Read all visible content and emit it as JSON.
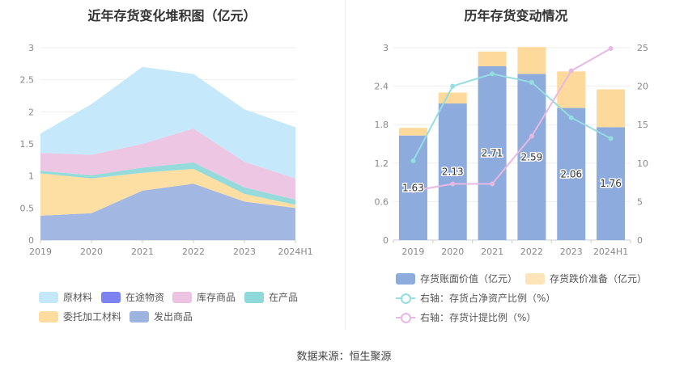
{
  "source_text": "数据来源：恒生聚源",
  "chart_data": [
    {
      "type": "area",
      "title": "近年存货变化堆积图（亿元）",
      "categories": [
        "2019",
        "2020",
        "2021",
        "2022",
        "2023",
        "2024H1"
      ],
      "ylim": [
        0,
        3
      ],
      "yticks": [
        "0",
        "0.5",
        "1",
        "1.5",
        "2",
        "2.5",
        "3"
      ],
      "series": [
        {
          "name": "发出商品",
          "color": "#9db4e0",
          "values": [
            0.38,
            0.42,
            0.77,
            0.88,
            0.6,
            0.5
          ]
        },
        {
          "name": "委托加工材料",
          "color": "#fddc9e",
          "values": [
            0.66,
            0.54,
            0.28,
            0.23,
            0.12,
            0.05
          ]
        },
        {
          "name": "在产品",
          "color": "#8fd9da",
          "values": [
            0.04,
            0.05,
            0.08,
            0.1,
            0.1,
            0.08
          ]
        },
        {
          "name": "在途物资",
          "color": "#7c83f0",
          "values": [
            0.0,
            0.0,
            0.0,
            0.0,
            0.0,
            0.0
          ]
        },
        {
          "name": "库存商品",
          "color": "#ecc3e1",
          "values": [
            0.28,
            0.32,
            0.37,
            0.53,
            0.4,
            0.33
          ]
        },
        {
          "name": "原材料",
          "color": "#c2e8fa",
          "values": [
            0.3,
            0.79,
            1.2,
            0.85,
            0.82,
            0.8
          ]
        }
      ],
      "legend": [
        "原材料",
        "在途物资",
        "库存商品",
        "在产品",
        "委托加工材料",
        "发出商品"
      ]
    },
    {
      "type": "bar",
      "title": "历年存货变动情况",
      "categories": [
        "2019",
        "2020",
        "2021",
        "2022",
        "2023",
        "2024H1"
      ],
      "ylim": [
        0,
        3
      ],
      "yticks": [
        "0",
        "0.6",
        "1.2",
        "1.8",
        "2.4",
        "3"
      ],
      "y2lim": [
        0,
        25
      ],
      "y2ticks": [
        "0",
        "5",
        "10",
        "15",
        "20",
        "25"
      ],
      "series": [
        {
          "name": "存货账面价值（亿元）",
          "type": "bar",
          "color": "#8dabdc",
          "values": [
            1.63,
            2.13,
            2.71,
            2.59,
            2.06,
            1.76
          ],
          "labels": [
            "1.63",
            "2.13",
            "2.71",
            "2.59",
            "2.06",
            "1.76"
          ]
        },
        {
          "name": "存货跌价准备（亿元）",
          "type": "bar",
          "color": "#fdd99b",
          "values": [
            0.12,
            0.17,
            0.23,
            0.42,
            0.57,
            0.59
          ]
        },
        {
          "name": "右轴：存货占净资产比例（%）",
          "type": "line",
          "color": "#94dde0",
          "values": [
            10.3,
            20.0,
            21.6,
            20.5,
            15.9,
            13.2
          ]
        },
        {
          "name": "右轴：存货计提比例（%）",
          "type": "line",
          "color": "#e7b9e2",
          "values": [
            6.4,
            7.3,
            7.3,
            13.5,
            22.0,
            24.9
          ]
        }
      ]
    }
  ]
}
